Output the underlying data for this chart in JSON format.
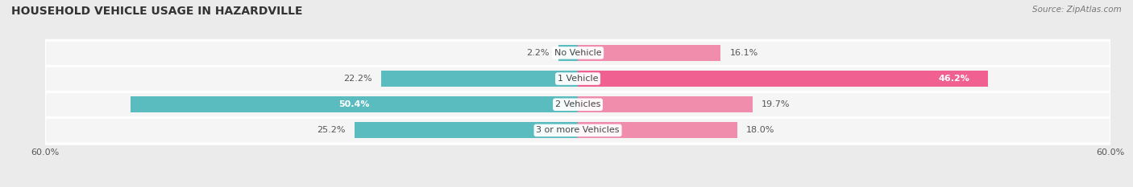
{
  "title": "HOUSEHOLD VEHICLE USAGE IN HAZARDVILLE",
  "source": "Source: ZipAtlas.com",
  "categories": [
    "No Vehicle",
    "1 Vehicle",
    "2 Vehicles",
    "3 or more Vehicles"
  ],
  "owner_values": [
    2.2,
    22.2,
    50.4,
    25.2
  ],
  "renter_values": [
    16.1,
    46.2,
    19.7,
    18.0
  ],
  "owner_color": "#5bbcbf",
  "renter_color": "#f08cac",
  "renter_color_dark": "#f06090",
  "background_color": "#ebebeb",
  "bar_background_color": "#e0e0e0",
  "row_bg_color": "#f5f5f5",
  "xlim": 60.0,
  "title_fontsize": 10,
  "label_fontsize": 8,
  "source_fontsize": 7.5,
  "bar_height": 0.62
}
